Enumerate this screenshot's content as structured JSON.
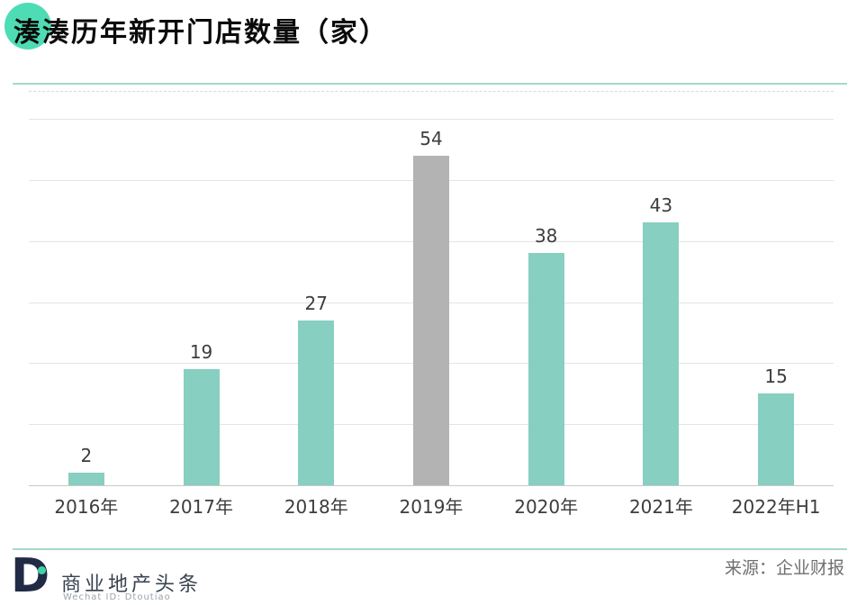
{
  "header": {
    "title": "湊湊历年新开门店数量（家）"
  },
  "chart_data": {
    "type": "bar",
    "title": "湊湊历年新开门店数量（家）",
    "categories": [
      "2016年",
      "2017年",
      "2018年",
      "2019年",
      "2020年",
      "2021年",
      "2022年H1"
    ],
    "values": [
      2,
      19,
      27,
      54,
      38,
      43,
      15
    ],
    "bar_colors": [
      "#87cfc0",
      "#87cfc0",
      "#87cfc0",
      "#b3b3b3",
      "#87cfc0",
      "#87cfc0",
      "#87cfc0"
    ],
    "highlight_index": 3,
    "xlabel": "",
    "ylabel": "",
    "ylim": [
      0,
      64.6
    ],
    "gridline_step": 10,
    "grid": true,
    "legend": "none",
    "data_labels": true
  },
  "footer": {
    "brand_letter": "D",
    "brand_name": "商业地产头条",
    "wechat_id": "Wechat ID: Dtoutiao",
    "source": "来源：企业财报"
  },
  "colors": {
    "accent_circle": "#4edcb4",
    "divider_teal": "#a6d9cb",
    "bar_teal": "#87cfc0",
    "bar_gray": "#b3b3b3",
    "logo_navy": "#222b45",
    "logo_dot_teal": "#3ed3a4"
  }
}
